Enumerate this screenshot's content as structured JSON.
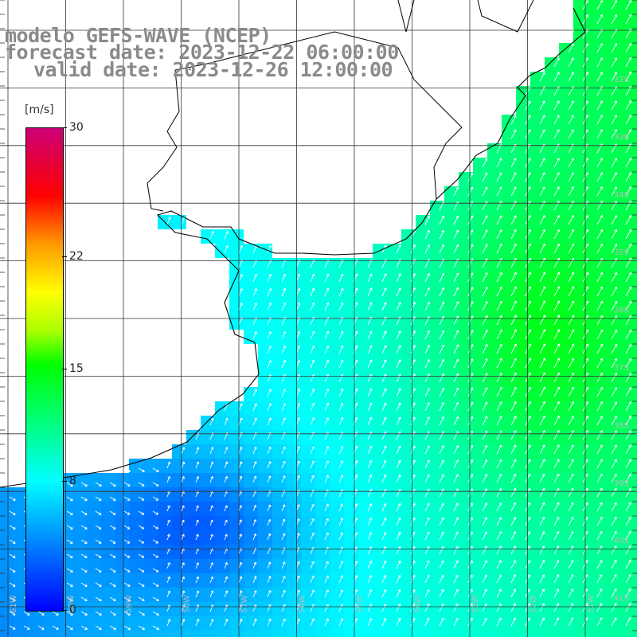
{
  "title": {
    "model": "modelo GEFS-WAVE (NCEP)",
    "forecast": "forecast date: 2023-12-22 06:00:00",
    "valid": "valid date: 2023-12-26 12:00:00"
  },
  "colorbar": {
    "unit": "[m/s]",
    "ticks": [
      {
        "value": 30,
        "label": "30"
      },
      {
        "value": 22,
        "label": "22"
      },
      {
        "value": 15,
        "label": "15"
      },
      {
        "value": 8,
        "label": "8"
      },
      {
        "value": 0,
        "label": "0"
      }
    ],
    "range": [
      0,
      30
    ]
  },
  "axes": {
    "lat_labels": [
      "32S",
      "33S",
      "34S",
      "35S",
      "36S",
      "37S",
      "38S",
      "39S",
      "40S",
      "41S"
    ],
    "lon_labels": [
      "61W",
      "60W",
      "59W",
      "58W",
      "57W",
      "56W",
      "55W",
      "54W",
      "53W",
      "52W",
      "51W"
    ]
  },
  "colors": {
    "background": "#ffffff",
    "grid": "#333333",
    "coast": "#000000",
    "arrow": "#ffffff",
    "title": "#8a8a8a"
  }
}
